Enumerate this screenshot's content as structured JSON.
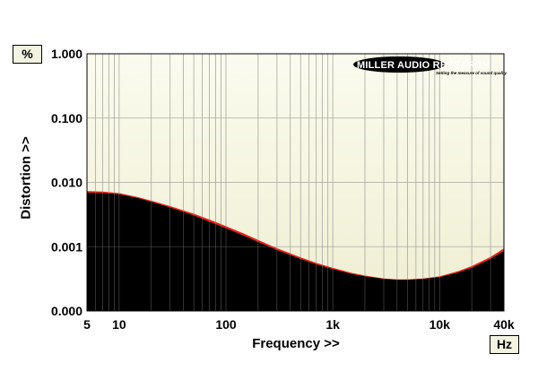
{
  "y_unit_label": "%",
  "x_unit_label": "Hz",
  "logo": {
    "brand": "MILLER AUDIO RESEARCH",
    "tagline": "Setting the measure of sound quality"
  },
  "colors": {
    "plot_background_top": "#fbfbef",
    "plot_background_bottom": "#efeed2",
    "fill": "#000000",
    "series_red": "#e8231b",
    "grid": "#b8b8a8"
  },
  "chart_data": {
    "type": "area",
    "title": "",
    "xlabel": "Frequency >>",
    "ylabel": "Distortion >>",
    "x_scale": "log",
    "y_scale": "log",
    "xlim": [
      5,
      40000
    ],
    "ylim": [
      0.0001,
      1
    ],
    "x_ticks": [
      {
        "value": 5,
        "label": "5"
      },
      {
        "value": 10,
        "label": "10"
      },
      {
        "value": 100,
        "label": "100"
      },
      {
        "value": 1000,
        "label": "1k"
      },
      {
        "value": 10000,
        "label": "10k"
      },
      {
        "value": 40000,
        "label": "40k"
      }
    ],
    "y_ticks": [
      {
        "value": 0.0001,
        "label": "0.000"
      },
      {
        "value": 0.001,
        "label": "0.001"
      },
      {
        "value": 0.01,
        "label": "0.010"
      },
      {
        "value": 0.1,
        "label": "0.100"
      },
      {
        "value": 1,
        "label": "1.000"
      }
    ],
    "grid": true,
    "series": [
      {
        "color": "#e8231b",
        "x": [
          5,
          7,
          10,
          15,
          20,
          30,
          50,
          70,
          100,
          150,
          200,
          300,
          500,
          700,
          1000,
          1500,
          2000,
          3000,
          4000,
          5000,
          7000,
          10000,
          15000,
          20000,
          30000,
          40000
        ],
        "y": [
          0.0072,
          0.0071,
          0.0067,
          0.0058,
          0.0051,
          0.0042,
          0.0032,
          0.0026,
          0.00205,
          0.00155,
          0.00125,
          0.00093,
          0.00067,
          0.00055,
          0.00046,
          0.000385,
          0.00035,
          0.000315,
          0.000305,
          0.000305,
          0.000315,
          0.00034,
          0.00041,
          0.00049,
          0.00068,
          0.00092
        ]
      },
      {
        "color": "#000000",
        "x": [
          5,
          7,
          10,
          15,
          20,
          30,
          50,
          70,
          100,
          150,
          200,
          300,
          500,
          700,
          1000,
          1500,
          2000,
          3000,
          4000,
          5000,
          7000,
          10000,
          15000,
          20000,
          30000,
          40000
        ],
        "y": [
          0.0068,
          0.0067,
          0.0064,
          0.0056,
          0.0049,
          0.004,
          0.003,
          0.0024,
          0.0019,
          0.00143,
          0.00116,
          0.00087,
          0.00063,
          0.00052,
          0.00044,
          0.00037,
          0.00034,
          0.00031,
          0.0003,
          0.0003,
          0.00031,
          0.00033,
          0.00039,
          0.00046,
          0.00063,
          0.00084
        ]
      }
    ]
  }
}
